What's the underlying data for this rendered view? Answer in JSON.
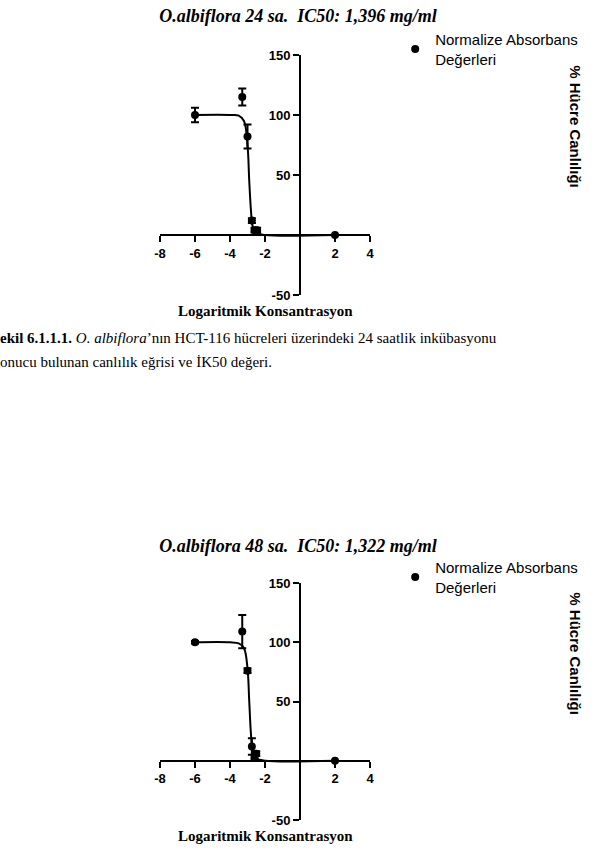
{
  "chart_data": [
    {
      "type": "scatter",
      "title": "O.albiflora 24 sa.  IC50: 1,396 mg/ml",
      "x_label": "Logaritmik Konsantrasyon",
      "y_label": "% Hücre Canlılığı",
      "xlim": [
        -8,
        4
      ],
      "xticks": [
        -8,
        -6,
        -4,
        -2,
        2,
        4
      ],
      "ylim": [
        -50,
        150
      ],
      "yticks": [
        -50,
        50,
        100,
        150
      ],
      "grid": false,
      "legend": "right",
      "series": [
        {
          "name": "Normalize Absorbans Değerleri",
          "type": "scatter",
          "marker": "circle",
          "color": "#000000",
          "x": [
            -6,
            -3.3,
            -3.0,
            -2.75,
            -2.6,
            -2.45,
            2
          ],
          "values": [
            100,
            115,
            82,
            12,
            4,
            4,
            0
          ],
          "error": [
            6,
            7,
            10,
            2,
            2,
            2,
            0
          ]
        },
        {
          "type": "line",
          "color": "#000000",
          "x": [
            -6,
            -4,
            -3.5,
            -3.2,
            -3.0,
            -2.9,
            -2.8,
            -2.7,
            -2.5,
            -2,
            2
          ],
          "values": [
            100,
            100,
            99.5,
            95,
            75,
            45,
            20,
            7,
            2,
            0,
            0
          ]
        }
      ],
      "caption": {
        "label": "ekil 6.1.1.1.",
        "species": "O. albiflora",
        "lines": [
          "’nın  HCT-116 hücreleri üzerindeki 24 saatlik inkübasyonu",
          "onucu bulunan canlılık eğrisi ve İK50 değeri."
        ]
      }
    },
    {
      "type": "scatter",
      "title": "O.albiflora 48 sa.  IC50: 1,322 mg/ml",
      "x_label": "Logaritmik Konsantrasyon",
      "y_label": "% Hücre Canlılığı",
      "xlim": [
        -8,
        4
      ],
      "xticks": [
        -8,
        -6,
        -4,
        -2,
        2,
        4
      ],
      "ylim": [
        -50,
        150
      ],
      "yticks": [
        -50,
        50,
        100,
        150
      ],
      "grid": false,
      "legend": "right",
      "series": [
        {
          "name": "Normalize Absorbans Değerleri",
          "type": "scatter",
          "marker": "circle",
          "color": "#000000",
          "x": [
            -6,
            -3.3,
            -3.0,
            -2.75,
            -2.6,
            -2.5,
            2
          ],
          "values": [
            100,
            109,
            76,
            12,
            3,
            6,
            0
          ],
          "error": [
            1,
            14,
            2,
            7,
            2,
            2,
            0
          ]
        },
        {
          "type": "line",
          "color": "#000000",
          "x": [
            -6,
            -4,
            -3.5,
            -3.2,
            -3.0,
            -2.9,
            -2.8,
            -2.7,
            -2.5,
            -2,
            2
          ],
          "values": [
            100,
            100,
            99,
            95,
            78,
            50,
            22,
            8,
            2,
            0,
            0
          ]
        }
      ]
    }
  ]
}
